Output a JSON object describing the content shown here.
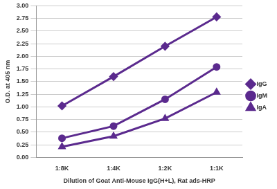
{
  "chart_data": {
    "type": "line",
    "x_label": "Dilution of Goat Anti-Mouse IgG(H+L), Rat ads-HRP",
    "y_label": "O.D. at 405 nm",
    "categories": [
      "1:8K",
      "1:4K",
      "1:2K",
      "1:1K"
    ],
    "series": [
      {
        "name": "IgG",
        "color": "#5b2a8e",
        "marker": "diamond",
        "values": [
          1.02,
          1.6,
          2.2,
          2.78
        ]
      },
      {
        "name": "IgM",
        "color": "#5b2a8e",
        "marker": "circle",
        "values": [
          0.38,
          0.62,
          1.15,
          1.79
        ]
      },
      {
        "name": "IgA",
        "color": "#5b2a8e",
        "marker": "triangle",
        "values": [
          0.21,
          0.42,
          0.77,
          1.29
        ]
      }
    ],
    "ylim": [
      0,
      3
    ],
    "yticks": [
      {
        "value": 0,
        "label": "0.00"
      },
      {
        "value": 0.25,
        "label": "0.25"
      },
      {
        "value": 0.5,
        "label": "0.50"
      },
      {
        "value": 0.75,
        "label": "0.75"
      },
      {
        "value": 1,
        "label": "1.00"
      },
      {
        "value": 1.25,
        "label": "1.25"
      },
      {
        "value": 1.5,
        "label": "1.50"
      },
      {
        "value": 1.75,
        "label": "1.75"
      },
      {
        "value": 2,
        "label": "2.00"
      },
      {
        "value": 2.25,
        "label": "2.25"
      },
      {
        "value": 2.5,
        "label": "2.50"
      },
      {
        "value": 2.75,
        "label": "2.75"
      },
      {
        "value": 3,
        "label": "3.00"
      }
    ],
    "grid": true,
    "legend": "right"
  }
}
